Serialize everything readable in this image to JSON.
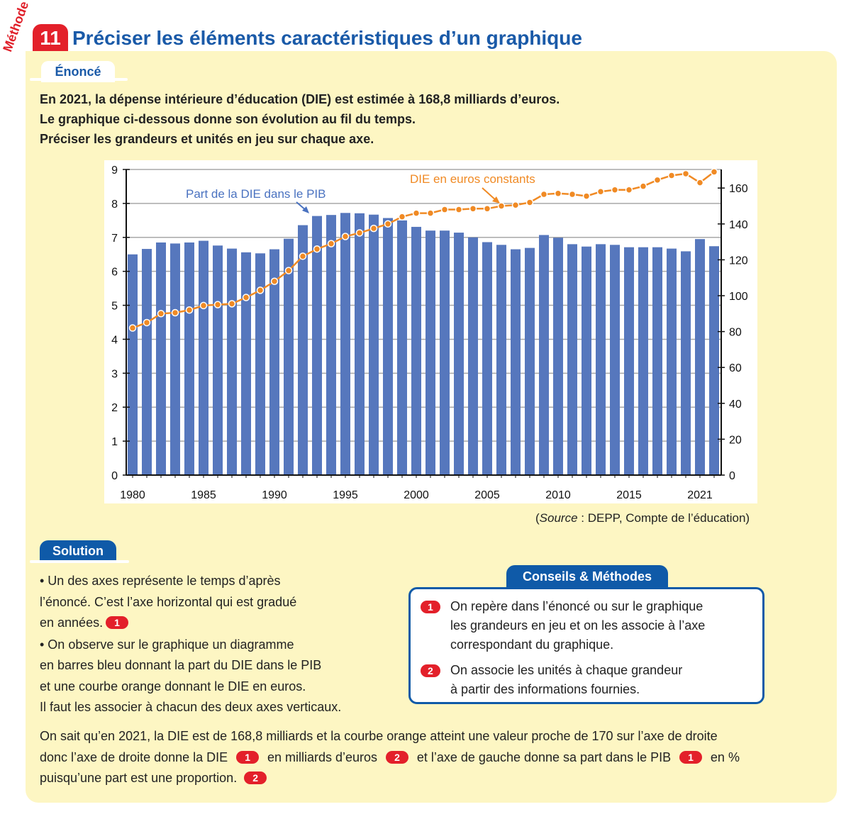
{
  "header": {
    "methode_label": "Méthode",
    "number": "11",
    "title": "Préciser les éléments caractéristiques d’un graphique"
  },
  "enonce": {
    "tab_label": "Énoncé",
    "lines": [
      "En 2021, la dépense intérieure d’éducation (DIE) est estimée à 168,8 milliards d’euros.",
      "Le graphique ci-dessous donne son évolution au fil du temps.",
      "Préciser les grandeurs et unités en jeu sur chaque axe."
    ]
  },
  "chart_data": {
    "type": "bar+line",
    "x": [
      1980,
      1981,
      1982,
      1983,
      1984,
      1985,
      1986,
      1987,
      1988,
      1989,
      1990,
      1991,
      1992,
      1993,
      1994,
      1995,
      1996,
      1997,
      1998,
      1999,
      2000,
      2001,
      2002,
      2003,
      2004,
      2005,
      2006,
      2007,
      2008,
      2009,
      2010,
      2011,
      2012,
      2013,
      2014,
      2015,
      2016,
      2017,
      2018,
      2019,
      2020,
      2021
    ],
    "x_tick_labels": [
      "1980",
      "1985",
      "1990",
      "1995",
      "2000",
      "2005",
      "2010",
      "2015",
      "2021"
    ],
    "x_tick_years": [
      1980,
      1985,
      1990,
      1995,
      2000,
      2005,
      2010,
      2015,
      2021
    ],
    "series": [
      {
        "name": "Part de la DIE dans le PIB",
        "type": "bar",
        "axis": "left",
        "color": "#5677bd",
        "values": [
          6.5,
          6.66,
          6.85,
          6.82,
          6.85,
          6.9,
          6.76,
          6.67,
          6.56,
          6.53,
          6.65,
          6.96,
          7.36,
          7.63,
          7.66,
          7.72,
          7.71,
          7.67,
          7.57,
          7.5,
          7.31,
          7.2,
          7.2,
          7.14,
          7.0,
          6.86,
          6.78,
          6.65,
          6.69,
          7.07,
          6.99,
          6.8,
          6.73,
          6.8,
          6.78,
          6.71,
          6.71,
          6.71,
          6.67,
          6.59,
          6.95,
          6.74
        ]
      },
      {
        "name": "DIE en euros constants",
        "type": "line",
        "axis": "right",
        "color": "#f08a24",
        "values": [
          82,
          85,
          90,
          90.5,
          92,
          94.5,
          95,
          95.5,
          99,
          103,
          108,
          114,
          122,
          126,
          129,
          133,
          135,
          137.5,
          140,
          144,
          146,
          146,
          148,
          148,
          148.5,
          148.5,
          150,
          150.5,
          152,
          156.5,
          157,
          156.5,
          155.5,
          158,
          159,
          159,
          161,
          164.5,
          167,
          168,
          163,
          169
        ]
      }
    ],
    "y_left": {
      "ylim": [
        0,
        9
      ],
      "ticks": [
        "0",
        "1",
        "2",
        "3",
        "4",
        "5",
        "6",
        "7",
        "8",
        "9"
      ]
    },
    "y_right": {
      "ylim": [
        0,
        170
      ],
      "ticks": [
        "0",
        "20",
        "40",
        "60",
        "80",
        "100",
        "120",
        "140",
        "160"
      ]
    },
    "grid": true
  },
  "source": {
    "prefix": "(",
    "italic": "Source",
    "rest": " : DEPP, Compte de l’éducation)"
  },
  "solution": {
    "tab_label": "Solution",
    "b1": [
      "• Un des axes représente le temps d’après",
      "l’énoncé. C’est l’axe horizontal qui est gradué",
      "en années."
    ],
    "b1_badge": "1",
    "b2": [
      "• On observe sur le graphique un diagramme",
      "en barres bleu donnant la part du DIE dans le PIB",
      "et une courbe orange donnant le DIE en euros.",
      "Il faut les associer à chacun des deux axes verticaux."
    ],
    "final": {
      "l1": "On sait qu’en 2021, la DIE est de 168,8 milliards et la courbe orange atteint une valeur proche de 170 sur l’axe de droite",
      "l2a": "donc l’axe de droite donne la DIE",
      "b1": "1",
      "l2b": "en milliards d’euros",
      "b2": "2",
      "l2c": "et l’axe de gauche donne sa part dans le PIB",
      "b3": "1",
      "l2d": "en %",
      "l3": "puisqu’une part est une proportion.",
      "b4": "2"
    }
  },
  "conseils": {
    "tab_label": "Conseils & Méthodes",
    "items": [
      {
        "badge": "1",
        "lines": [
          "On repère dans l’énoncé ou sur le graphique",
          "les grandeurs en jeu et on les associe à l’axe",
          "correspondant du graphique."
        ]
      },
      {
        "badge": "2",
        "lines": [
          "On associe les unités à chaque grandeur",
          "à partir des informations fournies."
        ]
      }
    ]
  }
}
